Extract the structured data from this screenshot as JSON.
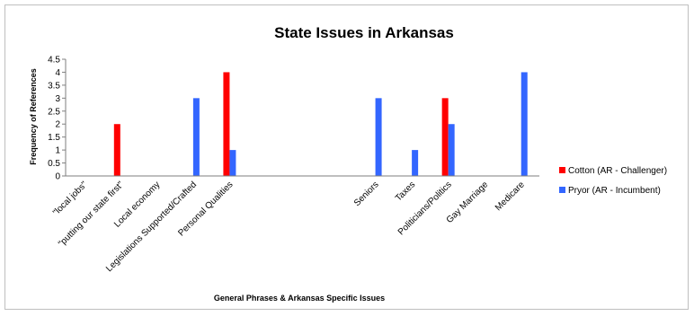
{
  "chart_data": {
    "type": "bar",
    "title": "State Issues in Arkansas",
    "xlabel": "General Phrases & Arkansas Specific Issues",
    "ylabel": "Frequency of References",
    "ylim": [
      0,
      4.5
    ],
    "yticks": [
      "0",
      "0.5",
      "1",
      "1.5",
      "2",
      "2.5",
      "3",
      "3.5",
      "4",
      "4.5"
    ],
    "categories": [
      "\"local jobs\"",
      "\"putting our state first\"",
      "Local economy",
      "Legislations Supported/Crafted",
      "Personal Qualities",
      "",
      "",
      "",
      "Seniors",
      "Taxes",
      "Politicians/Politics",
      "Gay Marriage",
      "Medicare"
    ],
    "series": [
      {
        "name": "Cotton (AR - Challenger)",
        "color": "#ff0000",
        "values": [
          0,
          2,
          0,
          0,
          4,
          0,
          0,
          0,
          0,
          0,
          3,
          0,
          0
        ]
      },
      {
        "name": "Pryor (AR - Incumbent)",
        "color": "#3366ff",
        "values": [
          0,
          0,
          0,
          3,
          1,
          0,
          0,
          0,
          3,
          1,
          2,
          0,
          4
        ]
      }
    ],
    "legend_position": "right",
    "grid": false
  }
}
